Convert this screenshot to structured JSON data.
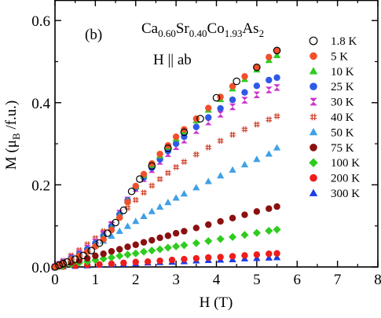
{
  "chart_data": {
    "type": "scatter",
    "panel_label": "(b)",
    "compound": {
      "parts": [
        {
          "text": "Ca",
          "sub": "0.60"
        },
        {
          "text": "Sr",
          "sub": "0.40"
        },
        {
          "text": "Co",
          "sub": "1.93"
        },
        {
          "text": "As",
          "sub": "2"
        }
      ]
    },
    "field_direction": "H || ab",
    "xlabel": "H (T)",
    "ylabel": {
      "prefix": "M (",
      "mu": "μ",
      "sub": "B",
      "suffix": " /f.u.)"
    },
    "xlim": [
      0,
      8
    ],
    "ylim": [
      0,
      0.65
    ],
    "xticks": [
      0,
      1,
      2,
      3,
      4,
      5,
      6,
      7,
      8
    ],
    "yticks": [
      0.0,
      0.2,
      0.4,
      0.6
    ],
    "ytick_labels": [
      "0.0",
      "0.2",
      "0.4",
      "0.6"
    ],
    "grid": false,
    "legend_position": "right",
    "series": [
      {
        "name": "1.8 K",
        "marker": "circle-open",
        "color": "#000000",
        "x": [
          0.0,
          0.1,
          0.2,
          0.3,
          0.5,
          0.7,
          0.9,
          1.1,
          1.3,
          1.5,
          1.7,
          1.9,
          2.1,
          2.4,
          2.8,
          3.2,
          3.6,
          4.0,
          4.5,
          5.0,
          5.5
        ],
        "y": [
          0.0,
          0.004,
          0.008,
          0.012,
          0.019,
          0.028,
          0.04,
          0.058,
          0.082,
          0.108,
          0.138,
          0.184,
          0.214,
          0.246,
          0.289,
          0.328,
          0.361,
          0.412,
          0.452,
          0.486,
          0.527
        ]
      },
      {
        "name": "5 K",
        "marker": "circle",
        "color": "#f0502a",
        "x": [
          0.0,
          0.1,
          0.2,
          0.4,
          0.6,
          0.8,
          1.0,
          1.2,
          1.4,
          1.6,
          1.8,
          2.0,
          2.2,
          2.4,
          2.6,
          2.8,
          3.0,
          3.2,
          3.5,
          3.8,
          4.1,
          4.4,
          4.7,
          5.0,
          5.3,
          5.5
        ],
        "y": [
          0.0,
          0.005,
          0.01,
          0.018,
          0.027,
          0.037,
          0.05,
          0.067,
          0.09,
          0.12,
          0.158,
          0.197,
          0.226,
          0.252,
          0.275,
          0.296,
          0.317,
          0.335,
          0.361,
          0.387,
          0.414,
          0.44,
          0.464,
          0.487,
          0.511,
          0.526
        ]
      },
      {
        "name": "10 K",
        "marker": "triangle-up",
        "color": "#2ecc1e",
        "x": [
          0.0,
          0.1,
          0.2,
          0.4,
          0.6,
          0.8,
          1.0,
          1.2,
          1.4,
          1.6,
          1.8,
          2.0,
          2.2,
          2.4,
          2.6,
          2.8,
          3.0,
          3.2,
          3.5,
          3.8,
          4.1,
          4.4,
          4.7,
          5.0,
          5.3,
          5.5
        ],
        "y": [
          0.0,
          0.005,
          0.01,
          0.019,
          0.028,
          0.039,
          0.053,
          0.071,
          0.094,
          0.124,
          0.161,
          0.196,
          0.223,
          0.248,
          0.271,
          0.292,
          0.312,
          0.33,
          0.356,
          0.382,
          0.408,
          0.434,
          0.457,
          0.48,
          0.503,
          0.515
        ]
      },
      {
        "name": "25 K",
        "marker": "circle",
        "color": "#2f5ae6",
        "x": [
          0.0,
          0.1,
          0.2,
          0.4,
          0.6,
          0.8,
          1.0,
          1.2,
          1.4,
          1.6,
          1.8,
          2.0,
          2.2,
          2.4,
          2.6,
          2.8,
          3.0,
          3.2,
          3.5,
          3.8,
          4.1,
          4.4,
          4.7,
          5.0,
          5.3,
          5.5
        ],
        "y": [
          0.0,
          0.006,
          0.011,
          0.021,
          0.031,
          0.043,
          0.058,
          0.076,
          0.099,
          0.128,
          0.162,
          0.193,
          0.218,
          0.241,
          0.262,
          0.282,
          0.3,
          0.317,
          0.341,
          0.364,
          0.386,
          0.407,
          0.425,
          0.441,
          0.455,
          0.461
        ]
      },
      {
        "name": "30 K",
        "marker": "hourglass",
        "color": "#cc33cc",
        "x": [
          0.0,
          0.1,
          0.2,
          0.4,
          0.6,
          0.8,
          1.0,
          1.2,
          1.4,
          1.6,
          1.8,
          2.0,
          2.2,
          2.4,
          2.6,
          2.8,
          3.0,
          3.2,
          3.5,
          3.8,
          4.1,
          4.4,
          4.7,
          5.0,
          5.3,
          5.5
        ],
        "y": [
          0.0,
          0.006,
          0.012,
          0.022,
          0.033,
          0.046,
          0.061,
          0.08,
          0.103,
          0.131,
          0.163,
          0.191,
          0.215,
          0.237,
          0.257,
          0.276,
          0.293,
          0.309,
          0.332,
          0.353,
          0.372,
          0.39,
          0.406,
          0.419,
          0.431,
          0.437
        ]
      },
      {
        "name": "40 K",
        "marker": "hash",
        "color": "#d0402a",
        "x": [
          0.0,
          0.1,
          0.2,
          0.4,
          0.6,
          0.8,
          1.0,
          1.2,
          1.4,
          1.6,
          1.8,
          2.0,
          2.2,
          2.4,
          2.6,
          2.8,
          3.0,
          3.2,
          3.5,
          3.8,
          4.1,
          4.4,
          4.7,
          5.0,
          5.3,
          5.5
        ],
        "y": [
          0.0,
          0.008,
          0.015,
          0.028,
          0.041,
          0.055,
          0.07,
          0.087,
          0.105,
          0.124,
          0.144,
          0.163,
          0.181,
          0.198,
          0.214,
          0.229,
          0.243,
          0.256,
          0.274,
          0.291,
          0.307,
          0.322,
          0.335,
          0.347,
          0.359,
          0.367
        ]
      },
      {
        "name": "50 K",
        "marker": "triangle-up",
        "color": "#3fa0e6",
        "x": [
          0.0,
          0.1,
          0.2,
          0.4,
          0.6,
          0.8,
          1.0,
          1.2,
          1.4,
          1.6,
          1.8,
          2.0,
          2.2,
          2.4,
          2.6,
          2.8,
          3.0,
          3.2,
          3.5,
          3.8,
          4.1,
          4.4,
          4.7,
          5.0,
          5.3,
          5.5
        ],
        "y": [
          0.0,
          0.006,
          0.011,
          0.021,
          0.031,
          0.041,
          0.052,
          0.063,
          0.075,
          0.087,
          0.099,
          0.111,
          0.123,
          0.135,
          0.146,
          0.157,
          0.168,
          0.178,
          0.193,
          0.208,
          0.222,
          0.236,
          0.249,
          0.262,
          0.275,
          0.29
        ]
      },
      {
        "name": "75 K",
        "marker": "circle",
        "color": "#8b1010",
        "x": [
          0.0,
          0.1,
          0.2,
          0.4,
          0.6,
          0.8,
          1.0,
          1.2,
          1.4,
          1.6,
          1.8,
          2.0,
          2.2,
          2.4,
          2.6,
          2.8,
          3.0,
          3.2,
          3.5,
          3.8,
          4.1,
          4.4,
          4.7,
          5.0,
          5.3,
          5.5
        ],
        "y": [
          0.0,
          0.003,
          0.006,
          0.011,
          0.016,
          0.021,
          0.027,
          0.032,
          0.038,
          0.043,
          0.049,
          0.054,
          0.06,
          0.065,
          0.071,
          0.076,
          0.082,
          0.087,
          0.095,
          0.103,
          0.111,
          0.119,
          0.127,
          0.135,
          0.142,
          0.147
        ]
      },
      {
        "name": "100 K",
        "marker": "diamond",
        "color": "#2ecc1e",
        "x": [
          0.0,
          0.1,
          0.2,
          0.4,
          0.6,
          0.8,
          1.0,
          1.2,
          1.4,
          1.6,
          1.8,
          2.0,
          2.2,
          2.4,
          2.6,
          2.8,
          3.0,
          3.2,
          3.5,
          3.8,
          4.1,
          4.4,
          4.7,
          5.0,
          5.3,
          5.5
        ],
        "y": [
          0.0,
          0.002,
          0.003,
          0.007,
          0.01,
          0.013,
          0.017,
          0.02,
          0.023,
          0.027,
          0.03,
          0.033,
          0.037,
          0.04,
          0.043,
          0.047,
          0.05,
          0.053,
          0.058,
          0.063,
          0.068,
          0.073,
          0.078,
          0.083,
          0.088,
          0.091
        ]
      },
      {
        "name": "200 K",
        "marker": "circle",
        "color": "#ee1c1c",
        "x": [
          0.0,
          0.2,
          0.5,
          0.8,
          1.1,
          1.4,
          1.7,
          2.0,
          2.3,
          2.6,
          2.9,
          3.2,
          3.5,
          3.8,
          4.1,
          4.4,
          4.7,
          5.0,
          5.3,
          5.5
        ],
        "y": [
          0.0,
          0.001,
          0.003,
          0.005,
          0.006,
          0.008,
          0.01,
          0.012,
          0.013,
          0.015,
          0.017,
          0.019,
          0.021,
          0.023,
          0.024,
          0.026,
          0.028,
          0.03,
          0.032,
          0.033
        ]
      },
      {
        "name": "300 K",
        "marker": "triangle-up",
        "color": "#1c3ce6",
        "x": [
          0.0,
          0.2,
          0.5,
          0.8,
          1.1,
          1.4,
          1.7,
          2.0,
          2.3,
          2.6,
          2.9,
          3.2,
          3.5,
          3.8,
          4.1,
          4.4,
          4.7,
          5.0,
          5.3,
          5.5
        ],
        "y": [
          0.0,
          0.001,
          0.002,
          0.003,
          0.005,
          0.006,
          0.007,
          0.008,
          0.01,
          0.011,
          0.012,
          0.013,
          0.015,
          0.016,
          0.017,
          0.018,
          0.02,
          0.021,
          0.022,
          0.023
        ]
      }
    ]
  }
}
